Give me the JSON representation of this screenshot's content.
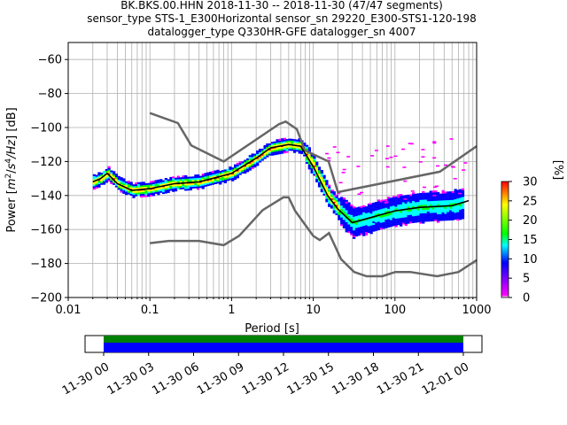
{
  "chart_data": [
    {
      "type": "heatmap",
      "title_lines": [
        "BK.BKS.00.HHN   2018-11-30 -- 2018-11-30  (47/47 segments)",
        "sensor_type STS-1_E300Horizontal sensor_sn 29220_E300-STS1-120-198",
        "datalogger_type Q330HR-GFE datalogger_sn 4007"
      ],
      "xlabel": "Period [s]",
      "ylabel": "Power [m²/s⁴/Hz] [dB]",
      "ylabel_parts": {
        "main": "Power [",
        "m": "m",
        "sup2": "2",
        "slash": "/",
        "s": "s",
        "sup4": "4",
        "hz": "/Hz",
        "end": "] [dB]"
      },
      "x_scale": "log",
      "xlim": [
        0.01,
        1000
      ],
      "ylim": [
        -200,
        -50
      ],
      "x_ticks": [
        0.01,
        0.1,
        1,
        10,
        100,
        1000
      ],
      "x_tick_labels": [
        "0.01",
        "0.1",
        "1",
        "10",
        "100",
        "1000"
      ],
      "y_ticks": [
        -200,
        -180,
        -160,
        -140,
        -120,
        -100,
        -80,
        -60
      ],
      "y_tick_labels": [
        "−200",
        "−180",
        "−160",
        "−140",
        "−120",
        "−100",
        "−80",
        "−60"
      ],
      "grid": true,
      "colorbar": {
        "label": "[%]",
        "range": [
          0,
          30
        ],
        "ticks": [
          0,
          5,
          10,
          15,
          20,
          25,
          30
        ],
        "tick_labels": [
          "0",
          "5",
          "10",
          "15",
          "20",
          "25",
          "30"
        ],
        "colors": [
          "#ffffff",
          "#ff00ff",
          "#0000ff",
          "#00ffff",
          "#00ff00",
          "#ffff00",
          "#ff0000"
        ]
      },
      "series": [
        {
          "role": "median",
          "color": "#000000",
          "x": [
            0.02,
            0.025,
            0.03,
            0.04,
            0.06,
            0.1,
            0.2,
            0.4,
            0.7,
            1,
            2,
            3,
            5,
            7,
            10,
            15,
            20,
            30,
            50,
            100,
            200,
            500,
            800
          ],
          "y": [
            -132,
            -130,
            -127,
            -133,
            -137,
            -136,
            -133,
            -132,
            -129,
            -127,
            -118,
            -112,
            -110,
            -111,
            -123,
            -140,
            -148,
            -156,
            -153,
            -149,
            -147,
            -146,
            -143
          ]
        },
        {
          "role": "high-noise-model",
          "color": "#666666",
          "x": [
            0.1,
            0.22,
            0.32,
            0.8,
            3.8,
            4.6,
            6.3,
            7.9,
            15.4,
            20,
            354.8,
            1000
          ],
          "y": [
            -91.5,
            -97.4,
            -110.5,
            -120,
            -98,
            -96.5,
            -101,
            -113.5,
            -120,
            -138,
            -126,
            -111
          ]
        },
        {
          "role": "low-noise-model",
          "color": "#666666",
          "x": [
            0.1,
            0.17,
            0.4,
            0.8,
            1.24,
            2.4,
            4.3,
            5,
            6,
            10,
            12,
            15.6,
            21.9,
            31.6,
            45,
            70,
            101,
            154,
            328,
            600,
            1000
          ],
          "y": [
            -168,
            -166.7,
            -166.7,
            -169.2,
            -163.7,
            -148.6,
            -141.1,
            -141.1,
            -149,
            -163.8,
            -166.2,
            -162.1,
            -177.5,
            -185,
            -187.5,
            -187.5,
            -185,
            -185,
            -187.5,
            -185,
            -178
          ]
        }
      ]
    },
    {
      "type": "bar",
      "role": "data-coverage",
      "x_tick_labels": [
        "11-30 00",
        "11-30 03",
        "11-30 06",
        "11-30 09",
        "11-30 12",
        "11-30 15",
        "11-30 18",
        "11-30 21",
        "12-01 00"
      ],
      "coverage_colors": [
        "#008000",
        "#0000ff"
      ]
    }
  ]
}
